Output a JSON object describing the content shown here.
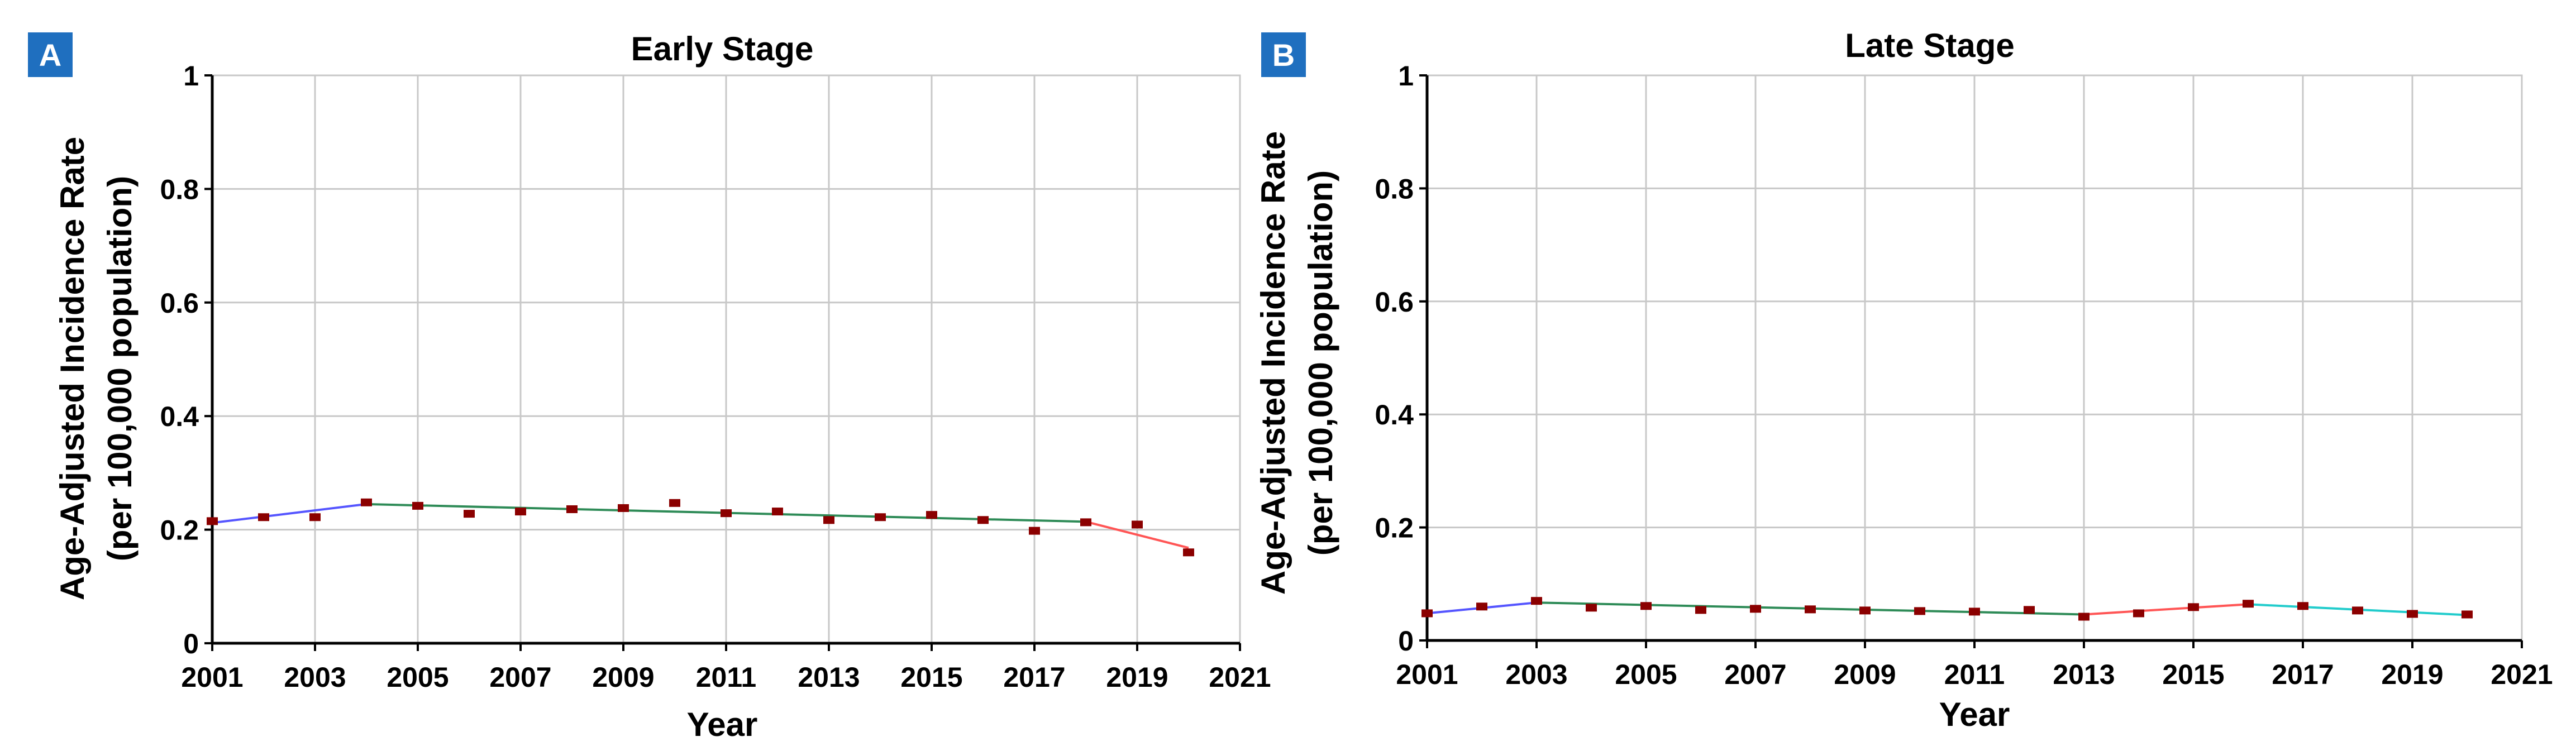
{
  "colors": {
    "panel_badge": "#1f6fbf",
    "grid": "#c8c8c8",
    "marker": "#8b0000",
    "segment_blue": "#5555ff",
    "segment_green": "#2e8b57",
    "segment_red": "#ff5555",
    "segment_cyan": "#22cccc"
  },
  "chart_data": [
    {
      "type": "line",
      "panel_label": "A",
      "title": "Early Stage",
      "xlabel": "Year",
      "ylabel_line1": "Age-Adjusted Incidence Rate",
      "ylabel_line2": "(per 100,000 population)",
      "xlim": [
        2001,
        2021
      ],
      "ylim": [
        0,
        1
      ],
      "xticks": [
        2001,
        2003,
        2005,
        2007,
        2009,
        2011,
        2013,
        2015,
        2017,
        2019,
        2021
      ],
      "yticks": [
        0,
        0.2,
        0.4,
        0.6,
        0.8,
        1
      ],
      "ytick_labels": [
        "0",
        "0.2",
        "0.4",
        "0.6",
        "0.8",
        "1"
      ],
      "grid": true,
      "observed": {
        "x": [
          2001,
          2002,
          2003,
          2004,
          2005,
          2006,
          2007,
          2008,
          2009,
          2010,
          2011,
          2012,
          2013,
          2014,
          2015,
          2016,
          2017,
          2018,
          2019,
          2020
        ],
        "y": [
          0.215,
          0.222,
          0.222,
          0.248,
          0.242,
          0.228,
          0.232,
          0.236,
          0.238,
          0.247,
          0.229,
          0.232,
          0.217,
          0.222,
          0.226,
          0.217,
          0.198,
          0.213,
          0.209,
          0.16
        ]
      },
      "fitted_segments": [
        {
          "color": "segment_blue",
          "x": [
            2001,
            2004
          ],
          "y": [
            0.212,
            0.245
          ]
        },
        {
          "color": "segment_green",
          "x": [
            2004,
            2018
          ],
          "y": [
            0.245,
            0.214
          ]
        },
        {
          "color": "segment_red",
          "x": [
            2018,
            2020
          ],
          "y": [
            0.214,
            0.168
          ]
        }
      ]
    },
    {
      "type": "line",
      "panel_label": "B",
      "title": "Late Stage",
      "xlabel": "Year",
      "ylabel_line1": "Age-Adjusted Incidence Rate",
      "ylabel_line2": "(per 100,000 population)",
      "xlim": [
        2001,
        2021
      ],
      "ylim": [
        0,
        1
      ],
      "xticks": [
        2001,
        2003,
        2005,
        2007,
        2009,
        2011,
        2013,
        2015,
        2017,
        2019,
        2021
      ],
      "yticks": [
        0,
        0.2,
        0.4,
        0.6,
        0.8,
        1
      ],
      "ytick_labels": [
        "0",
        "0.2",
        "0.4",
        "0.6",
        "0.8",
        "1"
      ],
      "grid": true,
      "observed": {
        "x": [
          2001,
          2002,
          2003,
          2004,
          2005,
          2006,
          2007,
          2008,
          2009,
          2010,
          2011,
          2012,
          2013,
          2014,
          2015,
          2016,
          2017,
          2018,
          2019,
          2020
        ],
        "y": [
          0.048,
          0.06,
          0.07,
          0.058,
          0.061,
          0.054,
          0.056,
          0.055,
          0.053,
          0.052,
          0.051,
          0.054,
          0.042,
          0.048,
          0.059,
          0.065,
          0.061,
          0.053,
          0.047,
          0.046
        ]
      },
      "fitted_segments": [
        {
          "color": "segment_blue",
          "x": [
            2001,
            2003
          ],
          "y": [
            0.048,
            0.067
          ]
        },
        {
          "color": "segment_green",
          "x": [
            2003,
            2013
          ],
          "y": [
            0.067,
            0.046
          ]
        },
        {
          "color": "segment_red",
          "x": [
            2013,
            2016
          ],
          "y": [
            0.046,
            0.064
          ]
        },
        {
          "color": "segment_cyan",
          "x": [
            2016,
            2020
          ],
          "y": [
            0.064,
            0.045
          ]
        }
      ]
    }
  ]
}
